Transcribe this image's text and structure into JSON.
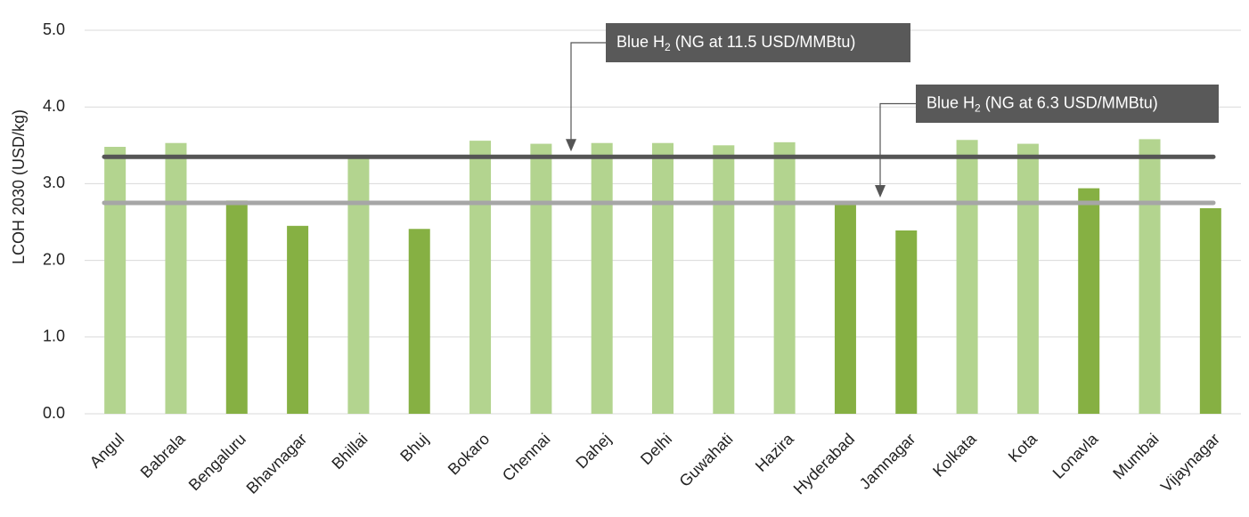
{
  "chart_data": {
    "type": "bar",
    "y_label": "LCOH 2030  (USD/kg)",
    "categories": [
      "Angul",
      "Babrala",
      "Bengaluru",
      "Bhavnagar",
      "Bhillai",
      "Bhuj",
      "Bokaro",
      "Chennai",
      "Dahej",
      "Delhi",
      "Guwahati",
      "Hazira",
      "Hyderabad",
      "Jamnagar",
      "Kolkata",
      "Kota",
      "Lonavla",
      "Mumbai",
      "Vijaynagar"
    ],
    "values": [
      3.48,
      3.53,
      2.78,
      2.45,
      3.33,
      2.41,
      3.56,
      3.52,
      3.53,
      3.53,
      3.5,
      3.54,
      2.73,
      2.39,
      3.57,
      3.52,
      2.94,
      3.58,
      2.68
    ],
    "colors": [
      "#b3d48f",
      "#b3d48f",
      "#86b043",
      "#86b043",
      "#b3d48f",
      "#86b043",
      "#b3d48f",
      "#b3d48f",
      "#b3d48f",
      "#b3d48f",
      "#b3d48f",
      "#b3d48f",
      "#86b043",
      "#86b043",
      "#b3d48f",
      "#b3d48f",
      "#86b043",
      "#b3d48f",
      "#86b043"
    ],
    "ylim": [
      0,
      5
    ],
    "yticks": [
      {
        "value": 0,
        "label": "0.0"
      },
      {
        "value": 1,
        "label": "1.0"
      },
      {
        "value": 2,
        "label": "2.0"
      },
      {
        "value": 3,
        "label": "3.0"
      },
      {
        "value": 4,
        "label": "4.0"
      },
      {
        "value": 5,
        "label": "5.0"
      }
    ],
    "grid": true,
    "reference_lines": [
      {
        "label_parts": [
          "Blue H",
          "2",
          " (NG at 11.5 USD/MMBtu)"
        ],
        "value": 3.35,
        "color": "#555555"
      },
      {
        "label_parts": [
          "Blue H",
          "2",
          " (NG at 6.3 USD/MMBtu)"
        ],
        "value": 2.75,
        "color": "#a6a6a6"
      }
    ]
  }
}
